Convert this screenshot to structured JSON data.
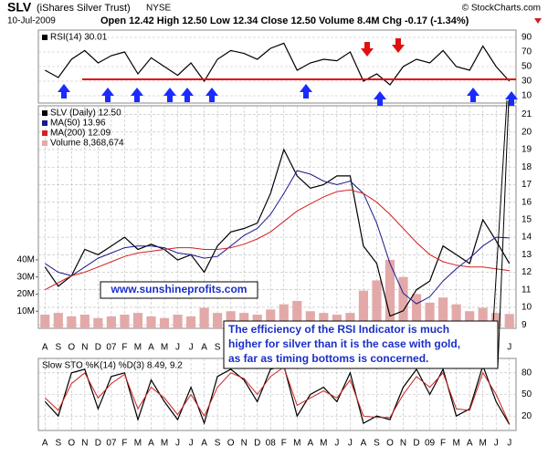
{
  "header": {
    "symbol": "SLV",
    "name": "(iShares Silver Trust)",
    "exchange": "NYSE",
    "copyright": "© StockCharts.com",
    "date": "10-Jul-2009",
    "quote": "Open 12.42  High 12.50  Low 12.34  Close 12.50  Volume 8.4M  Chg -0.17 (-1.34%)"
  },
  "annotations": {
    "url": "www.sunshineprofits.com",
    "note": [
      "The efficiency of the RSI Indicator is much",
      "higher for silver than it is the case with gold,",
      "as far as timing bottoms is concerned."
    ]
  },
  "chart_data": [
    {
      "type": "line",
      "ylim": [
        0,
        100
      ],
      "yticks": [
        10,
        30,
        50,
        70,
        90
      ],
      "series": [
        {
          "name": "RSI(14) 30.01",
          "color": "#000000",
          "values": [
            45,
            35,
            60,
            72,
            55,
            65,
            70,
            40,
            62,
            50,
            38,
            55,
            30,
            60,
            72,
            68,
            60,
            75,
            82,
            45,
            55,
            60,
            58,
            70,
            30,
            40,
            25,
            50,
            60,
            55,
            72,
            50,
            45,
            78,
            50,
            30
          ]
        }
      ]
    },
    {
      "type": "line",
      "ylim": [
        8.8,
        21.5
      ],
      "yticks": [
        9,
        10,
        11,
        12,
        13,
        14,
        15,
        16,
        17,
        18,
        19,
        20,
        21
      ],
      "categories": [
        "A",
        "S",
        "O",
        "N",
        "D",
        "07",
        "F",
        "M",
        "A",
        "M",
        "J",
        "J",
        "A",
        "S",
        "O",
        "N",
        "D",
        "08",
        "F",
        "M",
        "A",
        "M",
        "J",
        "J",
        "A",
        "S",
        "O",
        "N",
        "D",
        "09",
        "F",
        "M",
        "A",
        "M",
        "J",
        "J"
      ],
      "series": [
        {
          "name": "SLV (Daily) 12.50",
          "color": "#000000",
          "values": [
            12.3,
            11.2,
            11.8,
            13.3,
            13.0,
            13.5,
            14.0,
            13.3,
            13.6,
            13.3,
            12.7,
            13.0,
            12.0,
            13.5,
            14.3,
            14.5,
            14.8,
            16.5,
            19.0,
            17.5,
            16.8,
            17.0,
            17.5,
            17.5,
            13.5,
            12.5,
            9.5,
            9.8,
            11.0,
            11.5,
            13.5,
            13.0,
            12.5,
            15.0,
            13.8,
            12.5
          ]
        },
        {
          "name": "MA(50) 13.96",
          "color": "#1a1a8c",
          "values": [
            12.5,
            12.0,
            11.8,
            12.3,
            12.8,
            13.1,
            13.4,
            13.5,
            13.5,
            13.4,
            13.1,
            13.0,
            12.8,
            12.9,
            13.5,
            14.1,
            14.5,
            15.3,
            16.5,
            17.8,
            17.6,
            17.2,
            17.0,
            17.2,
            16.5,
            14.8,
            12.5,
            10.8,
            10.2,
            10.6,
            11.5,
            12.2,
            12.8,
            13.5,
            14.0,
            13.96
          ]
        },
        {
          "name": "MA(200) 12.09",
          "color": "#d42020",
          "values": [
            11.0,
            11.4,
            11.8,
            12.0,
            12.3,
            12.6,
            12.9,
            13.1,
            13.2,
            13.3,
            13.4,
            13.4,
            13.3,
            13.3,
            13.4,
            13.6,
            13.9,
            14.3,
            14.9,
            15.5,
            15.9,
            16.3,
            16.6,
            16.7,
            16.5,
            16.0,
            15.3,
            14.5,
            13.7,
            13.0,
            12.6,
            12.4,
            12.3,
            12.3,
            12.2,
            12.09
          ]
        },
        {
          "name": "Volume 8,368,674",
          "color": "#e3a9a9",
          "axis": "y2",
          "values": [
            8000000,
            9000000,
            7000000,
            8000000,
            6000000,
            7000000,
            8000000,
            9000000,
            7000000,
            6000000,
            8000000,
            7000000,
            12000000,
            9000000,
            10000000,
            9000000,
            8000000,
            11000000,
            14000000,
            16000000,
            10000000,
            9000000,
            8000000,
            9000000,
            22000000,
            28000000,
            40000000,
            30000000,
            20000000,
            15000000,
            18000000,
            14000000,
            10000000,
            12000000,
            9000000,
            8368674
          ]
        }
      ],
      "y2lim": [
        0,
        130000000
      ],
      "y2ticks": [
        {
          "value": 10000000,
          "label": "10M"
        },
        {
          "value": 20000000,
          "label": "20M"
        },
        {
          "value": 30000000,
          "label": "30M"
        },
        {
          "value": 40000000,
          "label": "40M"
        }
      ]
    },
    {
      "type": "line",
      "ylim": [
        0,
        100
      ],
      "yticks": [
        20,
        50,
        80
      ],
      "categories": [
        "A",
        "S",
        "O",
        "N",
        "D",
        "07",
        "F",
        "M",
        "A",
        "M",
        "J",
        "J",
        "A",
        "S",
        "O",
        "N",
        "D",
        "08",
        "F",
        "M",
        "A",
        "M",
        "J",
        "J",
        "A",
        "S",
        "O",
        "N",
        "D",
        "09",
        "F",
        "M",
        "A",
        "M",
        "J",
        "J"
      ],
      "legend": "Slow STO %K(14) %D(3) 8.49, 9.2",
      "series": [
        {
          "color": "#000000",
          "values": [
            40,
            20,
            80,
            85,
            30,
            75,
            80,
            15,
            70,
            40,
            15,
            60,
            10,
            75,
            85,
            70,
            40,
            85,
            90,
            20,
            50,
            60,
            40,
            80,
            10,
            20,
            15,
            60,
            85,
            50,
            85,
            20,
            30,
            90,
            40,
            8.49
          ]
        },
        {
          "color": "#cc2222",
          "values": [
            45,
            28,
            65,
            80,
            45,
            65,
            78,
            30,
            60,
            45,
            22,
            50,
            20,
            60,
            80,
            72,
            50,
            75,
            88,
            35,
            45,
            55,
            45,
            70,
            20,
            18,
            18,
            50,
            75,
            60,
            80,
            30,
            28,
            80,
            50,
            9.2
          ]
        }
      ]
    }
  ]
}
